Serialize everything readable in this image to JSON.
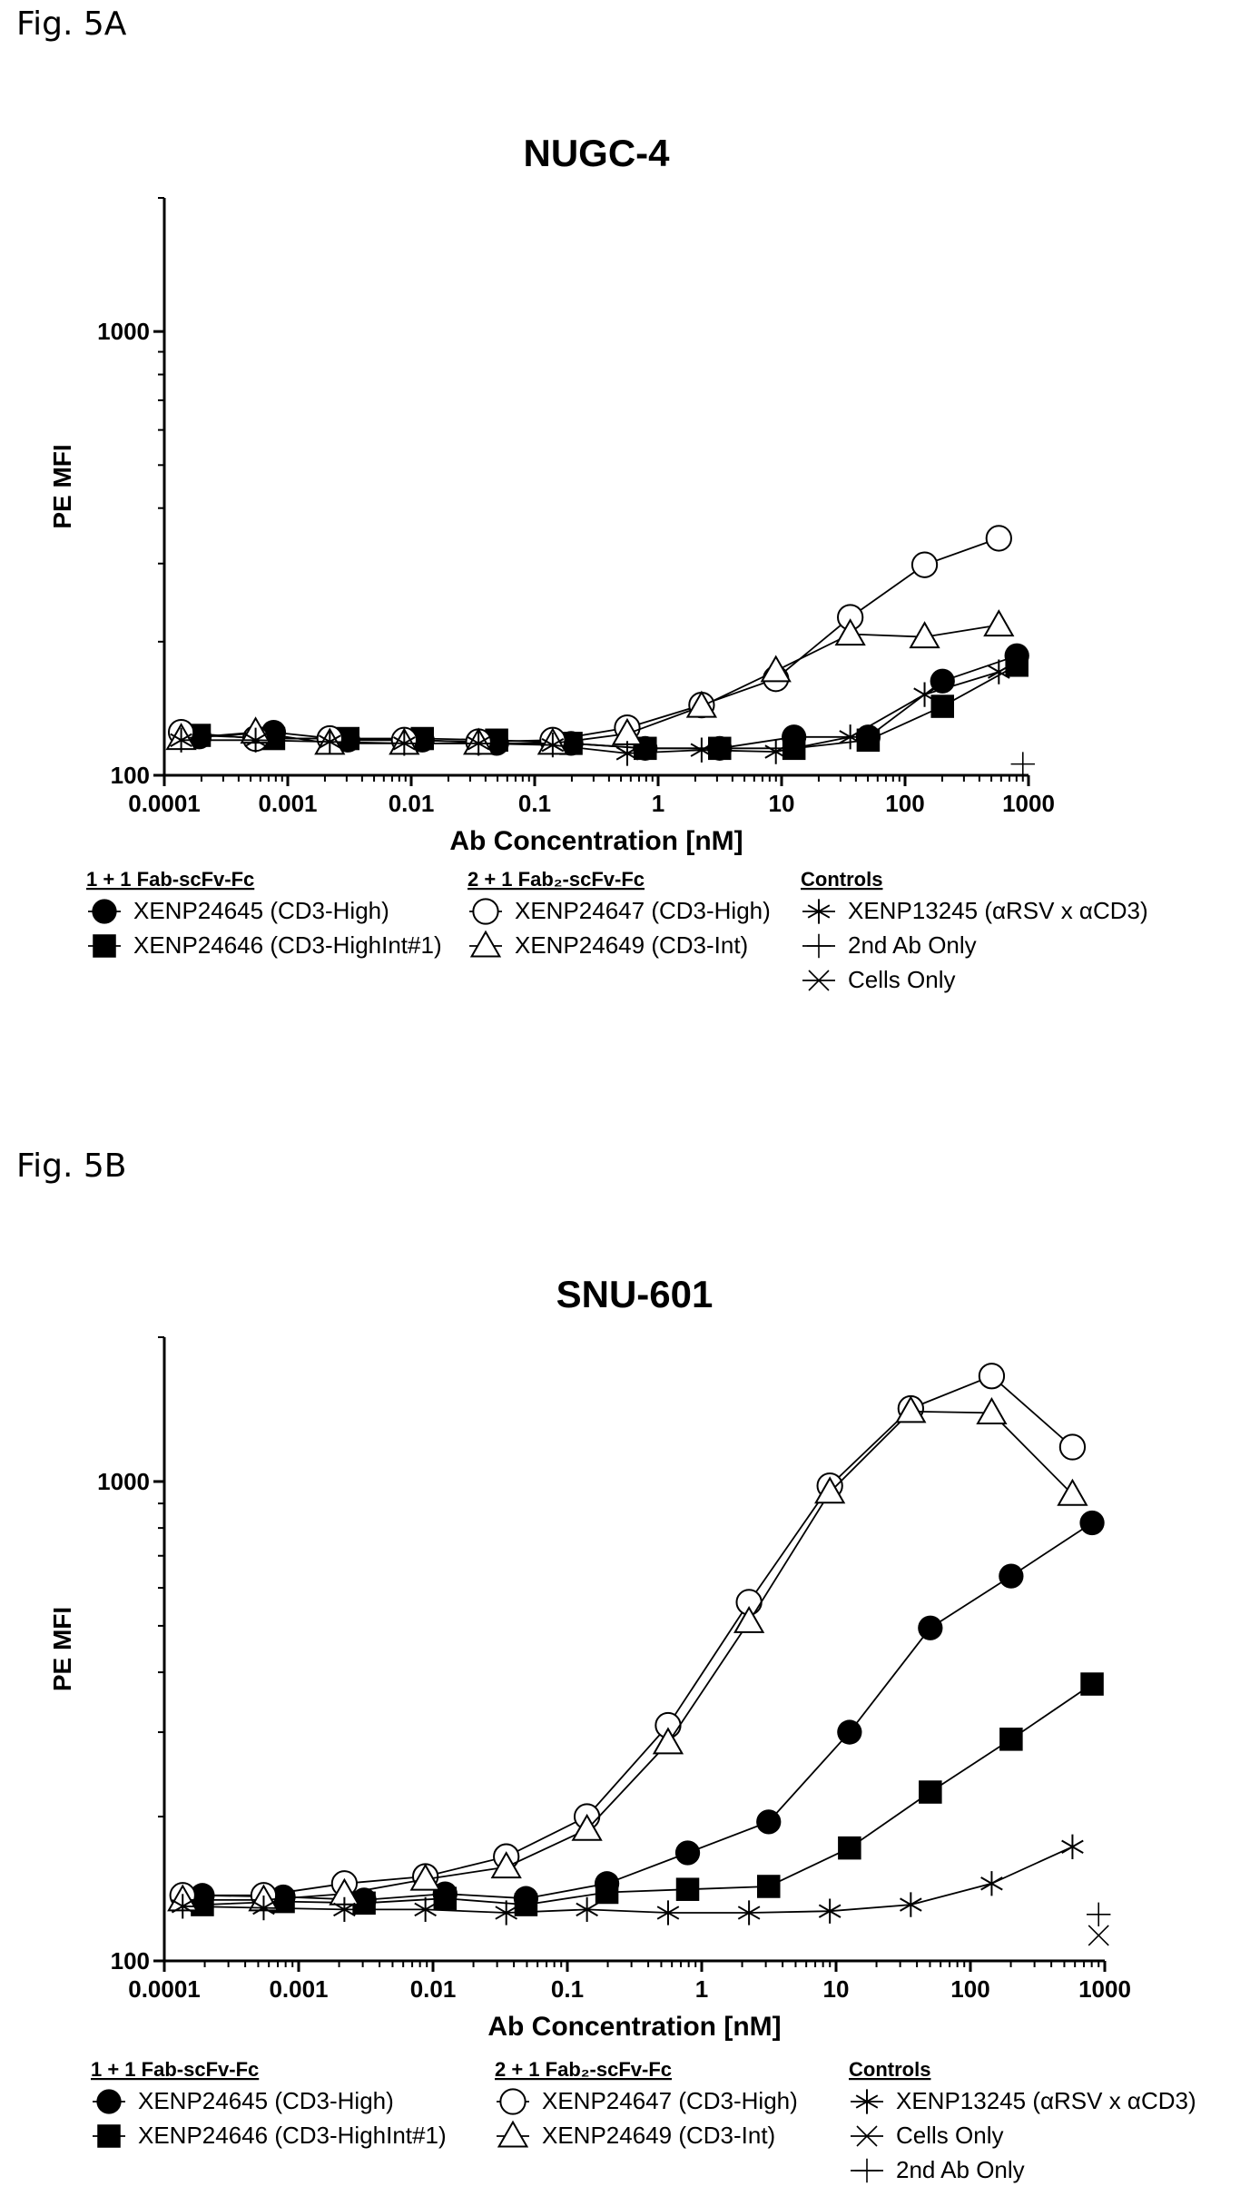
{
  "figures": [
    {
      "label": "Fig. 5A"
    },
    {
      "label": "Fig. 5B"
    }
  ],
  "chart_data": [
    {
      "type": "scatter",
      "title": "NUGC-4",
      "xlabel": "Ab Concentration [nM]",
      "ylabel": "PE MFI",
      "x_scale": "log",
      "y_scale": "log",
      "xlim": [
        0.0001,
        1000
      ],
      "ylim": [
        100,
        2000
      ],
      "x_ticks": [
        "0.0001",
        "0.001",
        "0.01",
        "0.1",
        "1",
        "10",
        "100",
        "1000"
      ],
      "y_ticks": [
        "100",
        "1000"
      ],
      "legend_groups": [
        {
          "title": "1 + 1 Fab-scFv-Fc",
          "items": [
            "XENP24645 (CD3-High)",
            "XENP24646 (CD3-HighInt#1)"
          ]
        },
        {
          "title": "2 + 1 Fab₂-scFv-Fc",
          "items": [
            "XENP24647 (CD3-High)",
            "XENP24649 (CD3-Int)"
          ]
        },
        {
          "title": "Controls",
          "items": [
            "XENP13245 (αRSV x αCD3)",
            "2nd Ab Only",
            "Cells Only"
          ]
        }
      ],
      "series": [
        {
          "name": "XENP24645 (CD3-High)",
          "marker": "filled-circle",
          "x": [
            0.000192,
            0.000768,
            0.00307,
            0.0123,
            0.0492,
            0.197,
            0.786,
            3.15,
            12.6,
            50.3,
            201,
            805
          ],
          "y": [
            122,
            125,
            120,
            120,
            118,
            118,
            115,
            115,
            122,
            122,
            163,
            186
          ]
        },
        {
          "name": "XENP24646 (CD3-HighInt#1)",
          "marker": "filled-square",
          "x": [
            0.000192,
            0.000768,
            0.00307,
            0.0123,
            0.0492,
            0.197,
            0.786,
            3.15,
            12.6,
            50.3,
            201,
            805
          ],
          "y": [
            123,
            121,
            121,
            121,
            120,
            118,
            115,
            115,
            115,
            120,
            143,
            177
          ]
        },
        {
          "name": "XENP24647 (CD3-High)",
          "marker": "open-circle",
          "x": [
            0.000137,
            0.000549,
            0.00219,
            0.00878,
            0.0351,
            0.14,
            0.562,
            2.25,
            8.99,
            36,
            144,
            575
          ],
          "y": [
            125,
            121,
            121,
            120,
            119,
            120,
            128,
            144,
            165,
            227,
            298,
            342
          ]
        },
        {
          "name": "XENP24649 (CD3-Int)",
          "marker": "open-triangle",
          "x": [
            0.000137,
            0.000549,
            0.00219,
            0.00878,
            0.0351,
            0.14,
            0.562,
            2.25,
            8.99,
            36,
            144,
            575
          ],
          "y": [
            121,
            125,
            118,
            118,
            118,
            118,
            124,
            143,
            172,
            208,
            205,
            218
          ]
        },
        {
          "name": "XENP13245 (αRSV x αCD3)",
          "marker": "asterisk",
          "x": [
            0.000137,
            0.000549,
            0.00219,
            0.00878,
            0.0351,
            0.14,
            0.562,
            2.25,
            8.99,
            36,
            144,
            575
          ],
          "y": [
            120,
            120,
            119,
            118,
            118,
            117,
            112,
            114,
            113,
            122,
            152,
            171
          ]
        },
        {
          "name": "2nd Ab Only",
          "marker": "plus",
          "x": [
            900
          ],
          "y": [
            106
          ]
        },
        {
          "name": "Cells Only",
          "marker": "x",
          "x": [],
          "y": []
        }
      ]
    },
    {
      "type": "scatter",
      "title": "SNU-601",
      "xlabel": "Ab Concentration [nM]",
      "ylabel": "PE MFI",
      "x_scale": "log",
      "y_scale": "log",
      "xlim": [
        0.0001,
        1000
      ],
      "ylim": [
        100,
        2000
      ],
      "x_ticks": [
        "0.0001",
        "0.001",
        "0.01",
        "0.1",
        "1",
        "10",
        "100",
        "1000"
      ],
      "y_ticks": [
        "100",
        "1000"
      ],
      "legend_groups": [
        {
          "title": "1 + 1 Fab-scFv-Fc",
          "items": [
            "XENP24645 (CD3-High)",
            "XENP24646 (CD3-HighInt#1)"
          ]
        },
        {
          "title": "2 + 1 Fab₂-scFv-Fc",
          "items": [
            "XENP24647 (CD3-High)",
            "XENP24649 (CD3-Int)"
          ]
        },
        {
          "title": "Controls",
          "items": [
            "XENP13245 (αRSV x αCD3)",
            "Cells Only",
            "2nd Ab Only"
          ]
        }
      ],
      "series": [
        {
          "name": "XENP24645 (CD3-High)",
          "marker": "filled-circle",
          "x": [
            0.000192,
            0.000768,
            0.00307,
            0.0123,
            0.0492,
            0.197,
            0.786,
            3.15,
            12.6,
            50.3,
            201,
            805
          ],
          "y": [
            137,
            136,
            134,
            138,
            135,
            145,
            168,
            195,
            300,
            495,
            635,
            820
          ]
        },
        {
          "name": "XENP24646 (CD3-HighInt#1)",
          "marker": "filled-square",
          "x": [
            0.000192,
            0.000768,
            0.00307,
            0.0123,
            0.0492,
            0.197,
            0.786,
            3.15,
            12.6,
            50.3,
            201,
            805
          ],
          "y": [
            131,
            133,
            132,
            135,
            131,
            139,
            141,
            143,
            172,
            225,
            290,
            378
          ]
        },
        {
          "name": "XENP24647 (CD3-High)",
          "marker": "open-circle",
          "x": [
            0.000137,
            0.000549,
            0.00219,
            0.00878,
            0.0351,
            0.14,
            0.562,
            2.25,
            8.99,
            36,
            144,
            575
          ],
          "y": [
            137,
            137,
            145,
            150,
            165,
            200,
            310,
            560,
            980,
            1420,
            1660,
            1180
          ]
        },
        {
          "name": "XENP24649 (CD3-Int)",
          "marker": "open-triangle",
          "x": [
            0.000137,
            0.000549,
            0.00219,
            0.00878,
            0.0351,
            0.14,
            0.562,
            2.25,
            8.99,
            36,
            144,
            575
          ],
          "y": [
            134,
            134,
            138,
            148,
            157,
            188,
            285,
            510,
            950,
            1400,
            1390,
            940
          ]
        },
        {
          "name": "XENP13245 (αRSV x αCD3)",
          "marker": "asterisk",
          "x": [
            0.000137,
            0.000549,
            0.00219,
            0.00878,
            0.0351,
            0.14,
            0.562,
            2.25,
            8.99,
            36,
            144,
            575
          ],
          "y": [
            130,
            129,
            128,
            128,
            126,
            128,
            126,
            126,
            127,
            131,
            145,
            173
          ]
        },
        {
          "name": "Cells Only",
          "marker": "x",
          "x": [
            900
          ],
          "y": [
            113
          ]
        },
        {
          "name": "2nd Ab Only",
          "marker": "plus",
          "x": [
            900
          ],
          "y": [
            125
          ]
        }
      ]
    }
  ]
}
